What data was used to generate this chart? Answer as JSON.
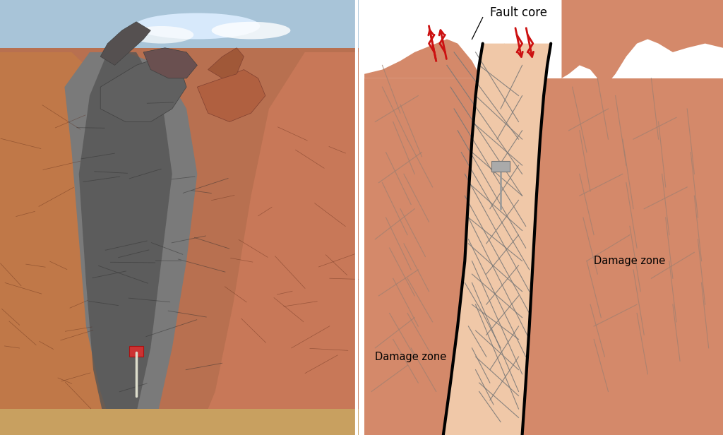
{
  "bg_color": "#ffffff",
  "diagram_bg": "#d4896a",
  "fault_core_color": "#f0c8a8",
  "fault_line_color": "#000000",
  "fracture_color": "#888888",
  "damage_fracture_color": "#999999",
  "red_arrow_color": "#cc1111",
  "label_fault_core": "Fault core",
  "label_damage_zone_right": "Damage zone",
  "label_damage_zone_left": "Damage zone",
  "top_bg": "#ffffff",
  "rock_color": "#d4896a",
  "rock_silhouette_color": "#c8785a"
}
